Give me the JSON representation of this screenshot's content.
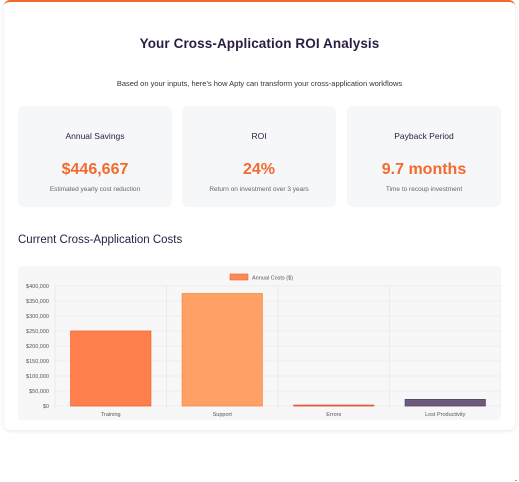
{
  "header": {
    "title": "Your Cross-Application ROI Analysis",
    "subtitle": "Based on your inputs, here's how Apty can transform your cross-application workflows"
  },
  "metrics": [
    {
      "label": "Annual Savings",
      "value": "$446,667",
      "note": "Estimated yearly cost reduction"
    },
    {
      "label": "ROI",
      "value": "24%",
      "note": "Return on investment over 3 years"
    },
    {
      "label": "Payback Period",
      "value": "9.7 months",
      "note": "Time to recoup investment"
    }
  ],
  "colors": {
    "accent": "#f26a2e",
    "title": "#2a1d42"
  },
  "section": {
    "title": "Current Cross-Application Costs"
  },
  "chart_data": {
    "type": "bar",
    "categories": [
      "Training",
      "Support",
      "Errors",
      "Lost Productivity"
    ],
    "series": [
      {
        "name": "Annual Costs ($)",
        "values": [
          250000,
          375000,
          3000,
          22000
        ]
      }
    ],
    "bar_colors": [
      "#ff7f4d",
      "#ffa065",
      "#f86a4a",
      "#6e5a7c"
    ],
    "bar_borders": [
      "#f0622f",
      "#f78a4a",
      "#e3552f",
      "#574463"
    ],
    "ylim": [
      0,
      400000
    ],
    "yticks": [
      "$0",
      "$50,000",
      "$100,000",
      "$150,000",
      "$200,000",
      "$250,000",
      "$300,000",
      "$350,000",
      "$400,000"
    ],
    "grid": true,
    "legend": "top-center"
  }
}
